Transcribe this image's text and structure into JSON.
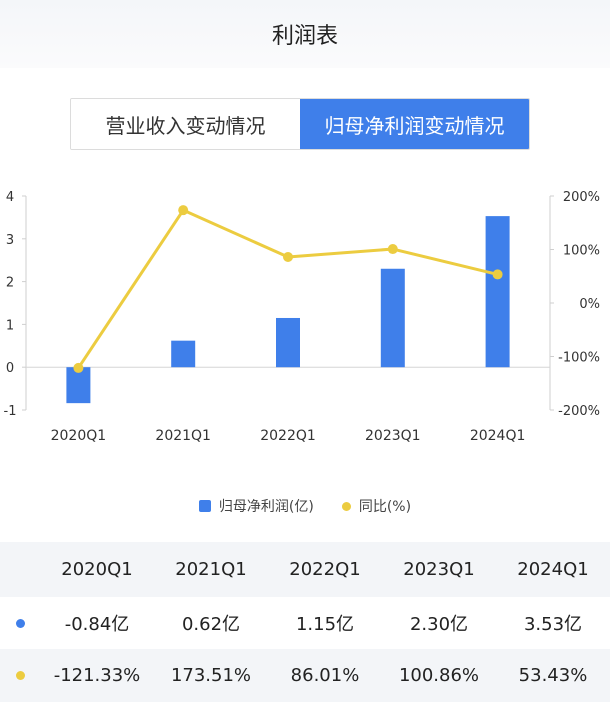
{
  "header": {
    "title": "利润表"
  },
  "tabs": [
    {
      "label": "营业收入变动情况",
      "active": false
    },
    {
      "label": "归母净利润变动情况",
      "active": true
    }
  ],
  "legend": {
    "bar_label": "归母净利润(亿)",
    "line_label": "同比(%)"
  },
  "chart_data": {
    "type": "bar+line",
    "categories": [
      "2020Q1",
      "2021Q1",
      "2022Q1",
      "2023Q1",
      "2024Q1"
    ],
    "series": [
      {
        "name": "归母净利润(亿)",
        "type": "bar",
        "axis": "left",
        "color": "#3f7fea",
        "values": [
          -0.84,
          0.62,
          1.15,
          2.3,
          3.53
        ]
      },
      {
        "name": "同比(%)",
        "type": "line",
        "axis": "right",
        "color": "#eccc40",
        "values": [
          -121.33,
          173.51,
          86.01,
          100.86,
          53.43
        ]
      }
    ],
    "left_axis": {
      "ticks": [
        4,
        3,
        2,
        1,
        0,
        -1
      ],
      "ylim": [
        -1,
        4
      ]
    },
    "right_axis": {
      "ticks": [
        "200%",
        "100%",
        "0%",
        "-100%",
        "-200%"
      ],
      "ylim": [
        -200,
        200
      ]
    },
    "grid": false,
    "legend_position": "bottom"
  },
  "table": {
    "headers": [
      "2020Q1",
      "2021Q1",
      "2022Q1",
      "2023Q1",
      "2024Q1"
    ],
    "profit_row": [
      "-0.84亿",
      "0.62亿",
      "1.15亿",
      "2.30亿",
      "3.53亿"
    ],
    "yoy_row": [
      "-121.33%",
      "173.51%",
      "86.01%",
      "100.86%",
      "53.43%"
    ]
  }
}
